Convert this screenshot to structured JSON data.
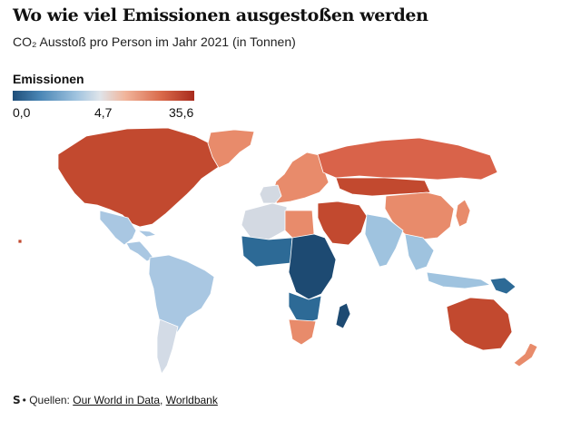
{
  "header": {
    "title": "Wo wie viel Emissionen ausgestoßen werden",
    "subtitle": "CO₂ Ausstoß pro Person im Jahr 2021 (in Tonnen)"
  },
  "legend": {
    "title": "Emissionen",
    "min_label": "0,0",
    "mid_label": "4,7",
    "max_label": "35,6",
    "min": 0.0,
    "mid": 4.7,
    "max": 35.6,
    "colors": {
      "low": "#1f4e79",
      "mid": "#dfe4ea",
      "high": "#a82b1d"
    }
  },
  "map": {
    "region_colors": {
      "north_america": "#c2492f",
      "greenland": "#e88b6b",
      "mexico": "#a9c7e2",
      "central_america": "#a9c7e2",
      "south_america": "#a9c7e2",
      "southern_cone": "#d3dbe6",
      "europe": "#e88b6b",
      "iberia_france": "#d3d9e2",
      "russia": "#d9634a",
      "china": "#e88b6b",
      "mongolia_kazakhstan": "#c2492f",
      "middle_east": "#c2492f",
      "india": "#9fc3df",
      "southeast_asia": "#9fc3df",
      "north_africa": "#d3d9e2",
      "libya": "#e88b6b",
      "west_africa": "#2d6a96",
      "central_africa": "#1d4a72",
      "east_africa": "#1d4a72",
      "southern_africa_dark": "#2d6a96",
      "south_africa": "#e88b6b",
      "madagascar": "#1d4a72",
      "australia": "#c2492f",
      "new_zealand": "#e88b6b",
      "japan_korea": "#e88b6b",
      "indonesia": "#9fc3df",
      "papua": "#2d6a96"
    }
  },
  "footer": {
    "brand": "S",
    "prefix": "• Quellen: ",
    "source1": "Our World in Data",
    "separator": ", ",
    "source2": "Worldbank"
  }
}
